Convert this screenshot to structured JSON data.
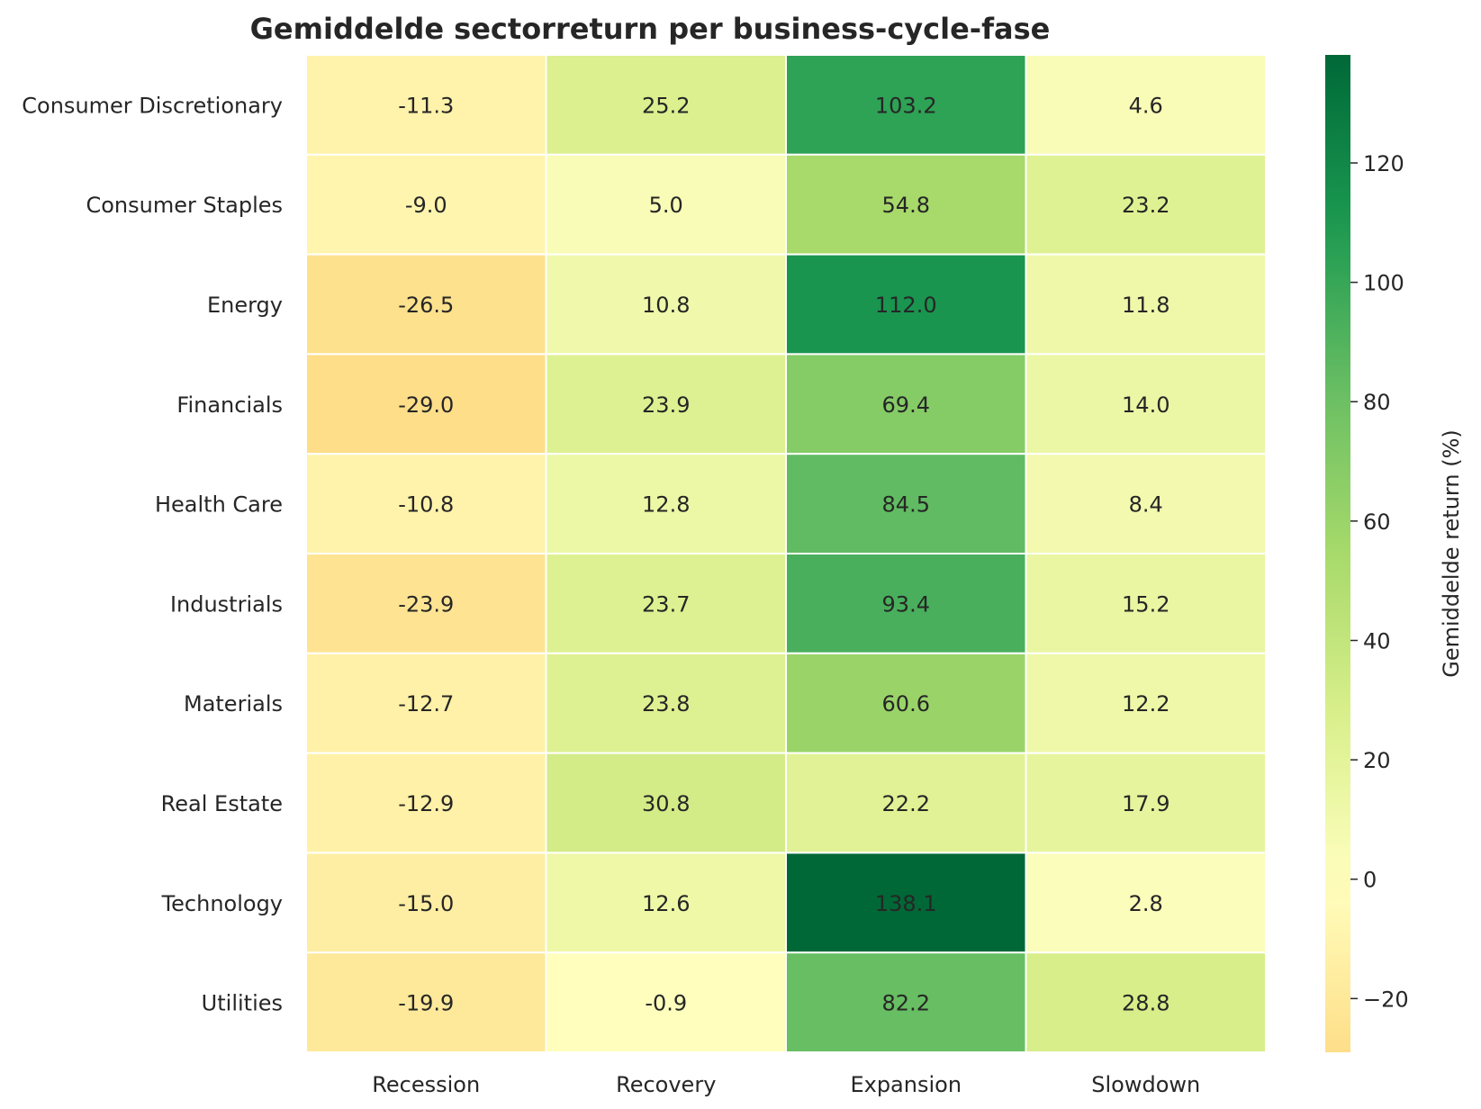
{
  "chart_data": {
    "type": "heatmap",
    "title": "Gemiddelde sectorreturn per business-cycle-fase",
    "columns": [
      "Recession",
      "Recovery",
      "Expansion",
      "Slowdown"
    ],
    "rows": [
      "Consumer Discretionary",
      "Consumer Staples",
      "Energy",
      "Financials",
      "Health Care",
      "Industrials",
      "Materials",
      "Real Estate",
      "Technology",
      "Utilities"
    ],
    "values": [
      [
        -11.3,
        25.2,
        103.2,
        4.6
      ],
      [
        -9.0,
        5.0,
        54.8,
        23.2
      ],
      [
        -26.5,
        10.8,
        112.0,
        11.8
      ],
      [
        -29.0,
        23.9,
        69.4,
        14.0
      ],
      [
        -10.8,
        12.8,
        84.5,
        8.4
      ],
      [
        -23.9,
        23.7,
        93.4,
        15.2
      ],
      [
        -12.7,
        23.8,
        60.6,
        12.2
      ],
      [
        -12.9,
        30.8,
        22.2,
        17.9
      ],
      [
        -15.0,
        12.6,
        138.1,
        2.8
      ],
      [
        -19.9,
        -0.9,
        82.2,
        28.8
      ]
    ],
    "value_labels": [
      [
        "-11.3",
        "25.2",
        "103.2",
        "4.6"
      ],
      [
        "-9.0",
        "5.0",
        "54.8",
        "23.2"
      ],
      [
        "-26.5",
        "10.8",
        "112.0",
        "11.8"
      ],
      [
        "-29.0",
        "23.9",
        "69.4",
        "14.0"
      ],
      [
        "-10.8",
        "12.8",
        "84.5",
        "8.4"
      ],
      [
        "-23.9",
        "23.7",
        "93.4",
        "15.2"
      ],
      [
        "-12.7",
        "23.8",
        "60.6",
        "12.2"
      ],
      [
        "-12.9",
        "30.8",
        "22.2",
        "17.9"
      ],
      [
        "-15.0",
        "12.6",
        "138.1",
        "2.8"
      ],
      [
        "-19.9",
        "-0.9",
        "82.2",
        "28.8"
      ]
    ],
    "colormap": "RdYlGn (centered at 0)",
    "vmin": -29.0,
    "vmax": 138.1,
    "colorbar": {
      "label": "Gemiddelde return (%)",
      "ticks": [
        -20,
        0,
        20,
        40,
        60,
        80,
        100,
        120
      ]
    }
  }
}
